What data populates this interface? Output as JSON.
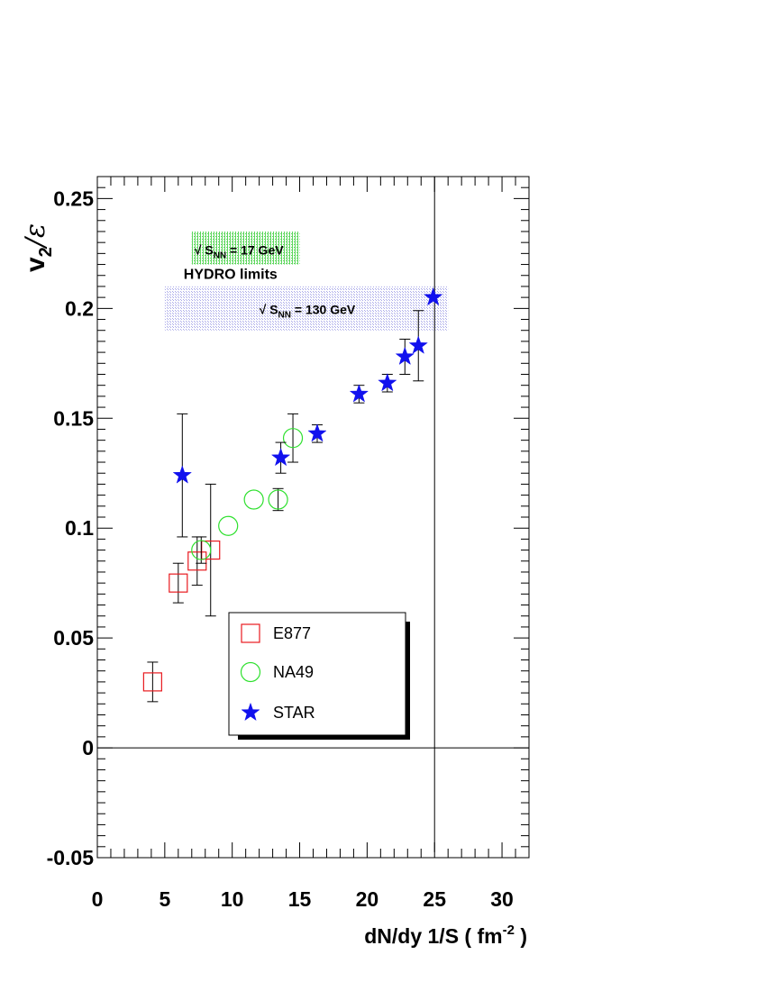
{
  "chart_data": {
    "type": "scatter",
    "xlabel": "dN/dy 1/S ( fm",
    "xlabel_sup": "-2",
    "xlabel_end": " )",
    "ylabel_main": "v",
    "ylabel_sub": "2",
    "ylabel_rest": "/ε",
    "xlim": [
      0,
      32
    ],
    "ylim": [
      -0.05,
      0.26
    ],
    "x_ticks": [
      0,
      5,
      10,
      15,
      20,
      25,
      30
    ],
    "x_tick_labels": [
      "0",
      "5",
      "10",
      "15",
      "20",
      "25",
      "30"
    ],
    "y_ticks": [
      -0.05,
      0,
      0.05,
      0.1,
      0.15,
      0.2,
      0.25
    ],
    "y_tick_labels": [
      "-0.05",
      "0",
      "0.05",
      "0.1",
      "0.15",
      "0.2",
      "0.25"
    ],
    "grid": false,
    "reference_lines": {
      "y": 0,
      "x": 25
    },
    "hydro": {
      "label": "HYDRO  limits",
      "band_17": {
        "text_prefix": "√ S",
        "text_sub": "NN",
        "text_suffix": " = 17 GeV",
        "x": [
          7,
          15
        ],
        "y": [
          0.22,
          0.235
        ],
        "color": "#7ed87e"
      },
      "band_130": {
        "text_prefix": "√ S",
        "text_sub": "NN",
        "text_suffix": " = 130 GeV",
        "x": [
          5,
          26
        ],
        "y": [
          0.19,
          0.21
        ],
        "color": "#c8c8f0"
      }
    },
    "series": [
      {
        "name": "E877",
        "marker": "square",
        "color": "#e8191e",
        "points": [
          {
            "x": 4.1,
            "y": 0.03,
            "err": 0.009
          },
          {
            "x": 6.0,
            "y": 0.075,
            "err": 0.009
          },
          {
            "x": 7.4,
            "y": 0.085,
            "err": 0.011
          },
          {
            "x": 8.4,
            "y": 0.09,
            "err": 0.03
          }
        ]
      },
      {
        "name": "NA49",
        "marker": "circle",
        "color": "#2ee02e",
        "points": [
          {
            "x": 7.7,
            "y": 0.09,
            "err": 0.006
          },
          {
            "x": 9.7,
            "y": 0.101,
            "err": 0.0
          },
          {
            "x": 11.6,
            "y": 0.113,
            "err": 0.0
          },
          {
            "x": 13.4,
            "y": 0.113,
            "err": 0.005
          },
          {
            "x": 14.5,
            "y": 0.141,
            "err": 0.011
          }
        ]
      },
      {
        "name": "STAR",
        "marker": "star",
        "color": "#1111ee",
        "points": [
          {
            "x": 6.3,
            "y": 0.124,
            "err": 0.028
          },
          {
            "x": 13.6,
            "y": 0.132,
            "err": 0.007
          },
          {
            "x": 16.3,
            "y": 0.143,
            "err": 0.004
          },
          {
            "x": 19.4,
            "y": 0.161,
            "err": 0.004
          },
          {
            "x": 21.5,
            "y": 0.166,
            "err": 0.004
          },
          {
            "x": 22.8,
            "y": 0.178,
            "err": 0.008
          },
          {
            "x": 23.8,
            "y": 0.183,
            "err": 0.016
          },
          {
            "x": 24.9,
            "y": 0.205,
            "err": 0.0
          }
        ]
      }
    ],
    "legend": {
      "position": "bottom-center",
      "entries": [
        "E877",
        "NA49",
        "STAR"
      ]
    }
  }
}
